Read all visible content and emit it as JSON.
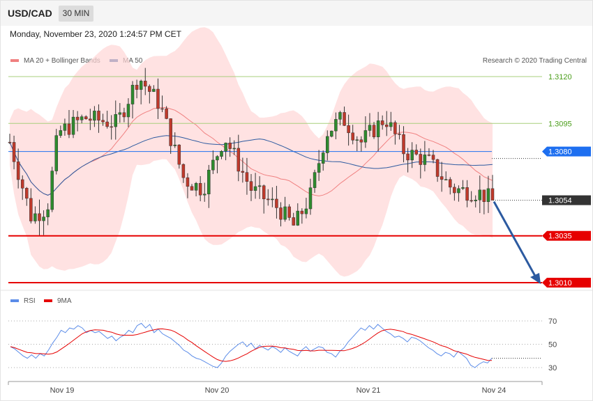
{
  "header": {
    "symbol": "USD/CAD",
    "timeframe": "30 MIN",
    "datetime": "Monday, November 23, 2020 1:24:57 PM CET"
  },
  "legend": {
    "ma20": "MA 20 + Bollinger Bands",
    "ma50": "MA 50",
    "rsi": "RSI",
    "ma9": "9MA",
    "copyright": "Research © 2020 Trading Central"
  },
  "colors": {
    "ma20": "#f08080",
    "ma50": "#2c5aa0",
    "bands_fill": "#ffd6d6",
    "up": "#2e8b2e",
    "down": "#c0392b",
    "resistance": "#a7cf7c",
    "support": "#e60000",
    "pivot": "#1e6ff0",
    "current": "#333333",
    "rsi": "#5a8be8",
    "rsi_ma": "#e60000",
    "arrow": "#2c5aa0"
  },
  "chart_data": [
    {
      "type": "candlestick",
      "title": "USD/CAD",
      "ylim": [
        1.2998,
        1.3136
      ],
      "x_labels": [
        "Nov 19",
        "Nov 20",
        "Nov 21",
        "Nov 24"
      ],
      "levels": [
        {
          "value": 1.312,
          "label": "1.3120",
          "kind": "resistance"
        },
        {
          "value": 1.3095,
          "label": "1.3095",
          "kind": "resistance"
        },
        {
          "value": 1.308,
          "label": "1.3080",
          "kind": "pivot"
        },
        {
          "value": 1.3054,
          "label": "1.3054",
          "kind": "current"
        },
        {
          "value": 1.3035,
          "label": "1.3035",
          "kind": "support"
        },
        {
          "value": 1.301,
          "label": "1.3010",
          "kind": "support"
        }
      ],
      "forecast_arrow": {
        "from": 1.3054,
        "to": 1.301
      },
      "series": [
        {
          "name": "MA 20 + Bollinger Bands",
          "kind": "overlay"
        },
        {
          "name": "MA 50",
          "kind": "overlay"
        }
      ],
      "candle_count": 115,
      "ohlc_start": 1.3085
    },
    {
      "type": "line",
      "title": "RSI",
      "ylim": [
        25,
        75
      ],
      "y_ticks": [
        70,
        50,
        30
      ],
      "series": [
        {
          "name": "RSI"
        },
        {
          "name": "9MA"
        }
      ],
      "rsi_values": [
        48,
        46,
        43,
        40,
        38,
        41,
        38,
        42,
        40,
        45,
        51,
        56,
        62,
        60,
        64,
        63,
        66,
        64,
        60,
        62,
        60,
        61,
        58,
        55,
        57,
        53,
        56,
        58,
        62,
        60,
        66,
        68,
        64,
        67,
        60,
        63,
        59,
        57,
        55,
        52,
        49,
        45,
        43,
        40,
        38,
        37,
        35,
        33,
        31,
        30,
        34,
        40,
        44,
        47,
        50,
        52,
        48,
        51,
        46,
        49,
        47,
        45,
        48,
        46,
        43,
        47,
        44,
        42,
        40,
        45,
        48,
        44,
        46,
        48,
        47,
        43,
        42,
        39,
        44,
        47,
        52,
        56,
        60,
        64,
        62,
        66,
        63,
        67,
        64,
        61,
        59,
        56,
        57,
        55,
        52,
        56,
        55,
        53,
        50,
        47,
        45,
        42,
        40,
        43,
        42,
        39,
        44,
        41,
        38,
        32,
        30,
        33,
        35,
        34,
        38
      ]
    }
  ]
}
